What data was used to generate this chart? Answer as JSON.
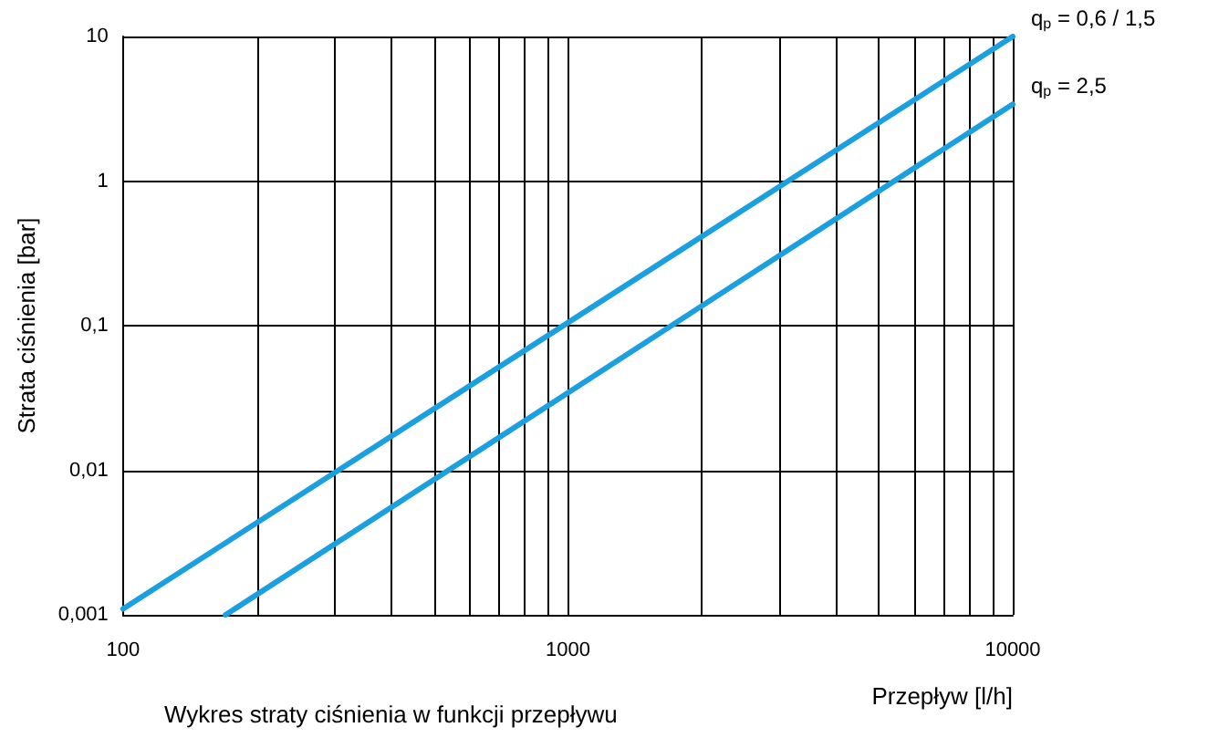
{
  "chart_data": {
    "type": "line",
    "xlabel": "Przepływ [l/h]",
    "ylabel": "Strata ciśnienia [bar]",
    "log": "xy",
    "grid": true,
    "marker": "none",
    "line_style": "solid",
    "xlim": [
      100,
      10000
    ],
    "ylim": [
      0.001,
      10
    ],
    "xticks": [
      100,
      {
        "value": 200,
        "label": null
      },
      {
        "value": 300,
        "label": null
      },
      {
        "value": 400,
        "label": null
      },
      {
        "value": 500,
        "label": null
      },
      {
        "value": 600,
        "label": null
      },
      {
        "value": 700,
        "label": null
      },
      {
        "value": 800,
        "label": null
      },
      {
        "value": 900,
        "label": null
      },
      1000,
      {
        "value": 2000,
        "label": null
      },
      {
        "value": 3000,
        "label": null
      },
      {
        "value": 4000,
        "label": null
      },
      {
        "value": 5000,
        "label": null
      },
      {
        "value": 6000,
        "label": null
      },
      {
        "value": 7000,
        "label": null
      },
      {
        "value": 8000,
        "label": null
      },
      {
        "value": 9000,
        "label": null
      },
      10000
    ],
    "yticks": [
      {
        "value": 0.001,
        "label": "0,001"
      },
      {
        "value": 0.01,
        "label": "0,01"
      },
      {
        "value": 0.1,
        "label": "0,1"
      },
      1,
      10
    ],
    "series": [
      {
        "name": "q$_{p}$ = 0,6 / 1,5",
        "color": "#1a9fe0",
        "x": [
          100,
          10000
        ],
        "values": [
          0.0011,
          10
        ]
      },
      {
        "name": "q$_{p}$ = 2,5",
        "color": "#1a9fe0",
        "x": [
          170,
          10000
        ],
        "values": [
          0.001,
          3.4
        ]
      }
    ],
    "annotations": [
      "Wykres straty ciśnienia w funkcji przepływu"
    ]
  }
}
